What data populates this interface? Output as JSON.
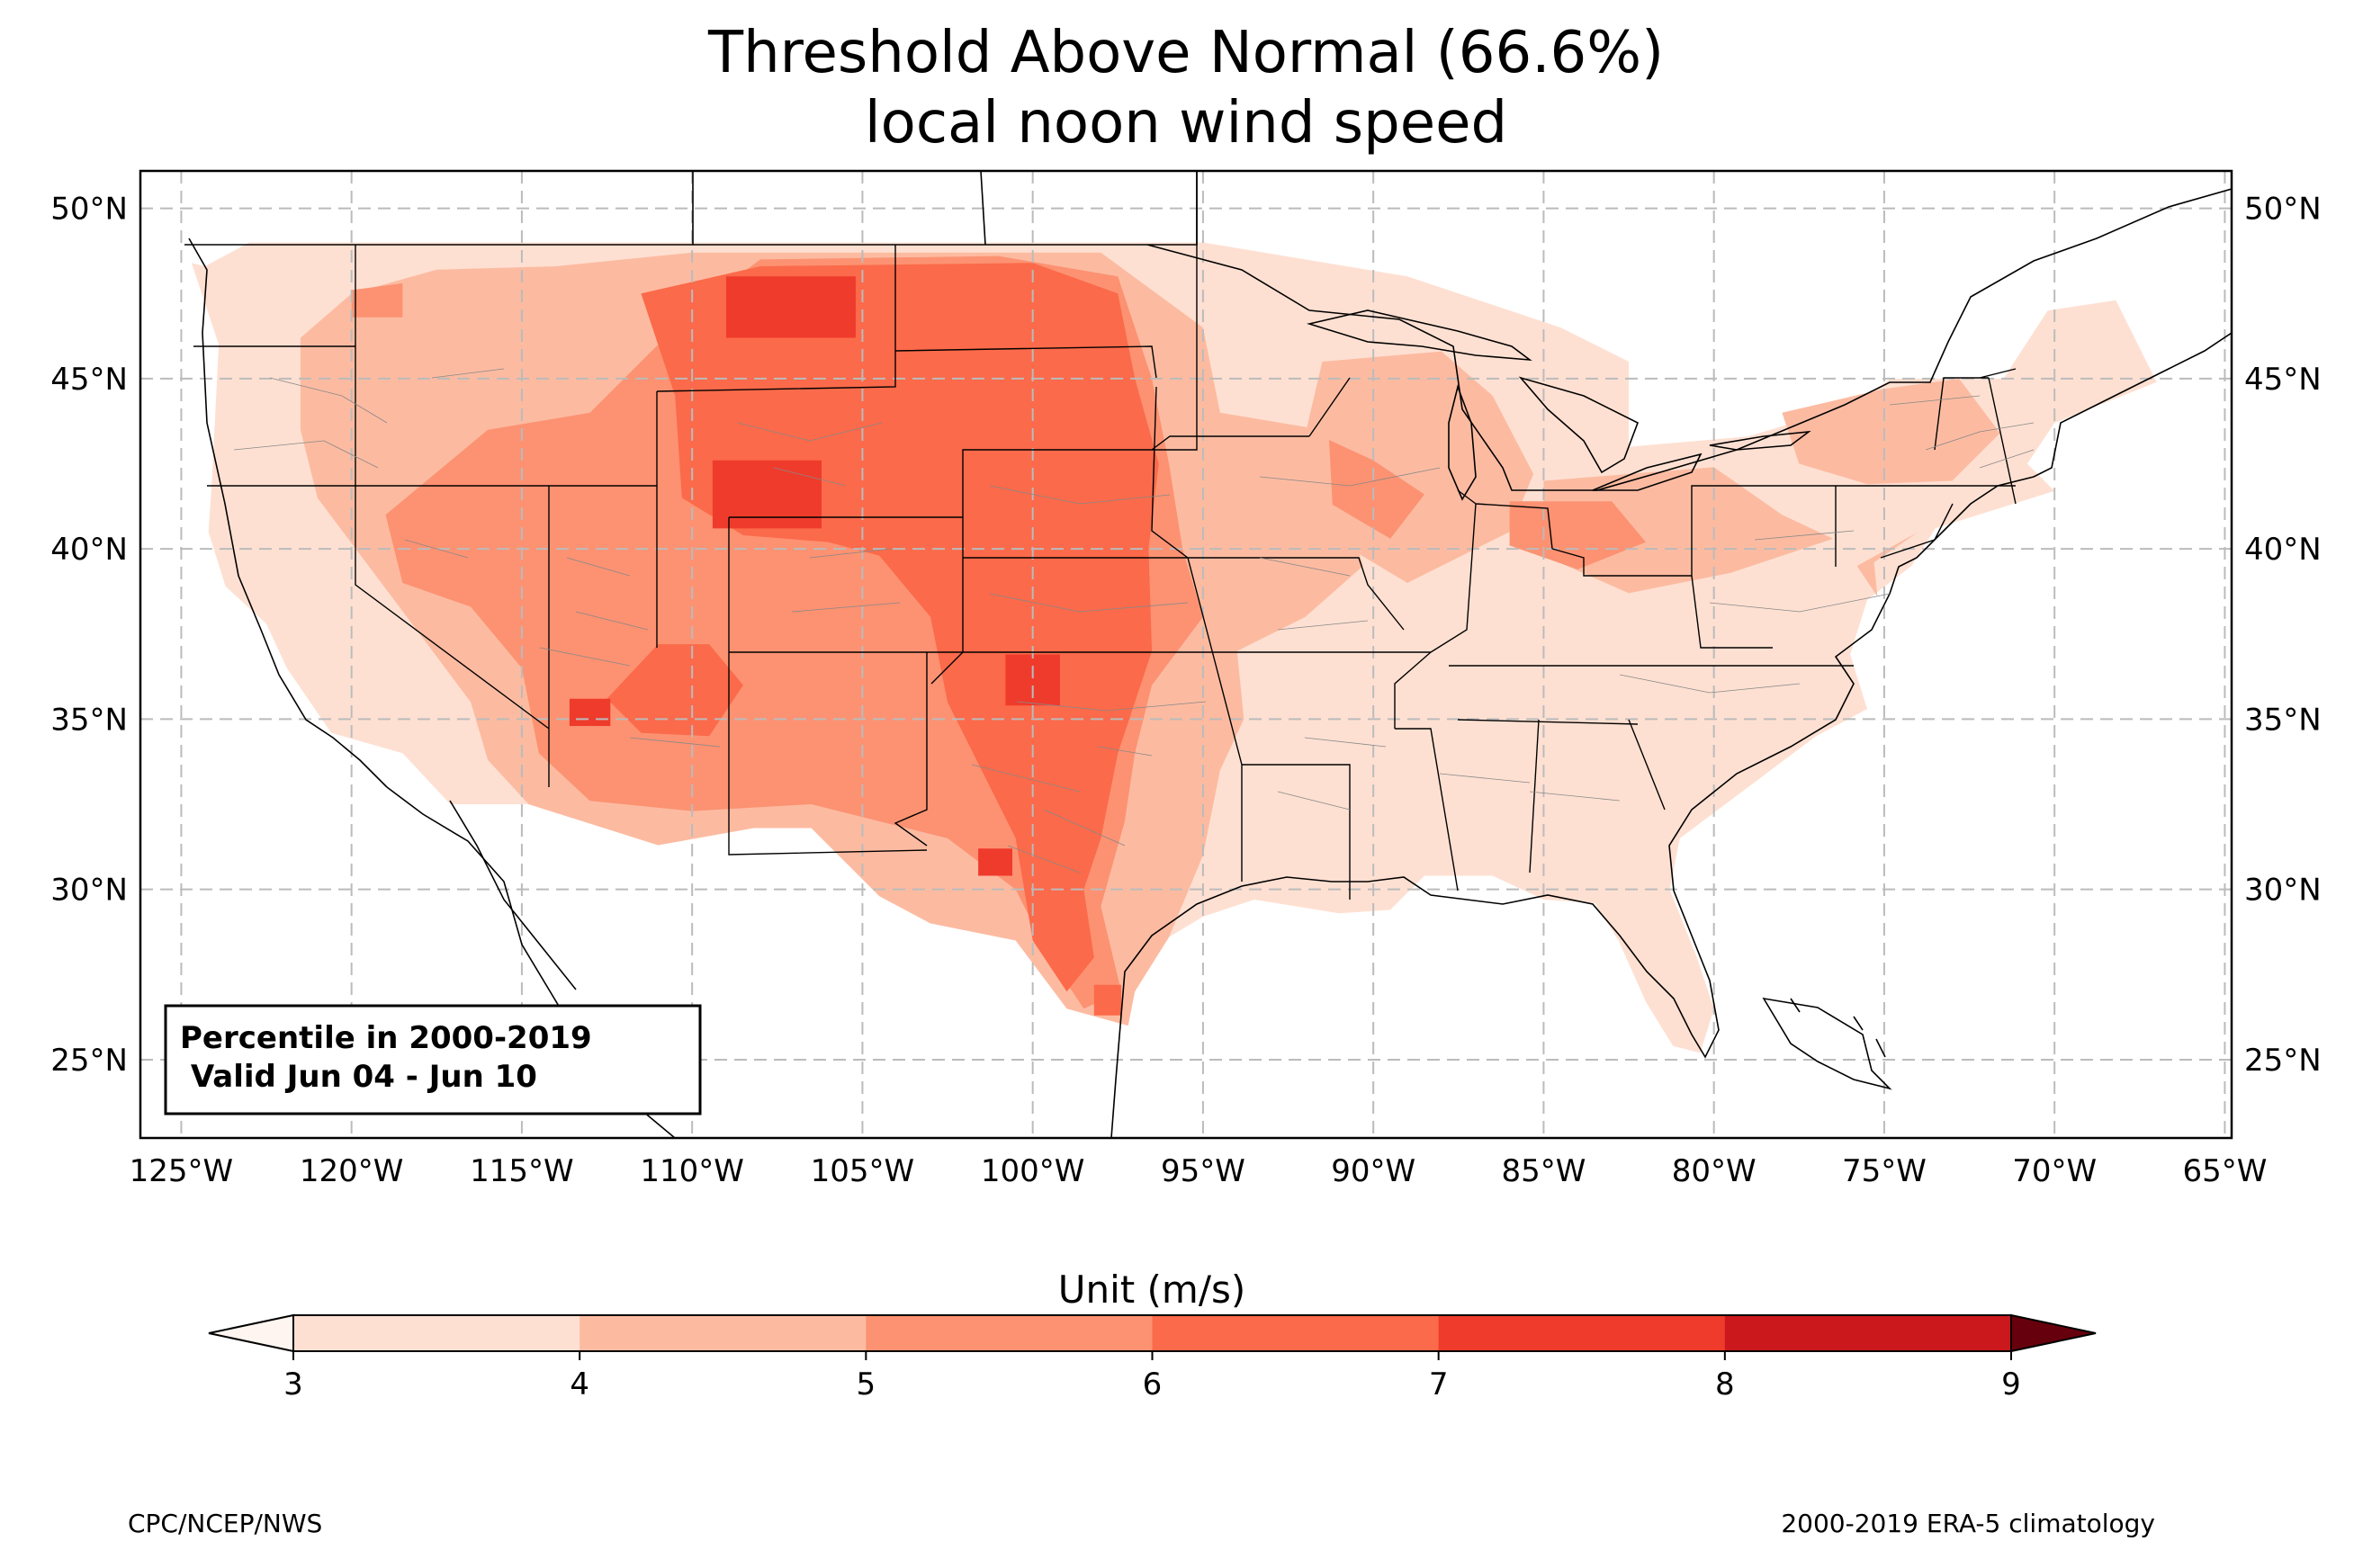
{
  "title_line1": "Threshold Above Normal (66.6%)",
  "title_line2": "local noon wind speed",
  "map": {
    "lon_range": [
      -126.2,
      -64.8
    ],
    "lat_range": [
      22.7,
      51.1
    ],
    "lon_ticks": [
      {
        "v": -125,
        "label": "125°W"
      },
      {
        "v": -120,
        "label": "120°W"
      },
      {
        "v": -115,
        "label": "115°W"
      },
      {
        "v": -110,
        "label": "110°W"
      },
      {
        "v": -105,
        "label": "105°W"
      },
      {
        "v": -100,
        "label": "100°W"
      },
      {
        "v": -95,
        "label": "95°W"
      },
      {
        "v": -90,
        "label": "90°W"
      },
      {
        "v": -85,
        "label": "85°W"
      },
      {
        "v": -80,
        "label": "80°W"
      },
      {
        "v": -75,
        "label": "75°W"
      },
      {
        "v": -70,
        "label": "70°W"
      },
      {
        "v": -65,
        "label": "65°W"
      }
    ],
    "lat_ticks": [
      {
        "v": 25,
        "label": "25°N"
      },
      {
        "v": 30,
        "label": "30°N"
      },
      {
        "v": 35,
        "label": "35°N"
      },
      {
        "v": 40,
        "label": "40°N"
      },
      {
        "v": 45,
        "label": "45°N"
      },
      {
        "v": 50,
        "label": "50°N"
      }
    ],
    "gridlines": true,
    "info_box": {
      "line1": "Percentile in 2000-2019",
      "line2": " Valid Jun 04 - Jun 10"
    },
    "regions": [
      {
        "level": 1,
        "lonlat": [
          [
            -124.3,
            48.3
          ],
          [
            -123,
            49
          ],
          [
            -95,
            49
          ],
          [
            -89,
            48
          ],
          [
            -84.5,
            46.5
          ],
          [
            -82.5,
            45.5
          ],
          [
            -82.5,
            43
          ],
          [
            -79,
            43.3
          ],
          [
            -76,
            44.2
          ],
          [
            -74.8,
            45
          ],
          [
            -71.5,
            45
          ],
          [
            -70.2,
            47
          ],
          [
            -68.2,
            47.3
          ],
          [
            -67,
            44.9
          ],
          [
            -70,
            43.7
          ],
          [
            -70.8,
            42.5
          ],
          [
            -70,
            41.7
          ],
          [
            -73.5,
            40.6
          ],
          [
            -74.2,
            39.5
          ],
          [
            -75.5,
            38.5
          ],
          [
            -76,
            36.9
          ],
          [
            -75.5,
            35.3
          ],
          [
            -77,
            34.5
          ],
          [
            -79,
            33
          ],
          [
            -81,
            31.5
          ],
          [
            -81.3,
            30
          ],
          [
            -80.5,
            28
          ],
          [
            -80,
            26.5
          ],
          [
            -80.4,
            25.2
          ],
          [
            -81.2,
            25.4
          ],
          [
            -82,
            26.7
          ],
          [
            -82.8,
            28.5
          ],
          [
            -83.5,
            29.6
          ],
          [
            -85,
            29.7
          ],
          [
            -86.5,
            30.4
          ],
          [
            -88.5,
            30.4
          ],
          [
            -89.5,
            29.4
          ],
          [
            -91,
            29.3
          ],
          [
            -93.5,
            29.7
          ],
          [
            -95,
            29.2
          ],
          [
            -96.5,
            28.3
          ],
          [
            -97.3,
            27.2
          ],
          [
            -97.2,
            26
          ],
          [
            -99,
            26.5
          ],
          [
            -100.5,
            28.5
          ],
          [
            -101.5,
            29.8
          ],
          [
            -103,
            29
          ],
          [
            -104.5,
            29.8
          ],
          [
            -106.5,
            31.8
          ],
          [
            -108.2,
            31.8
          ],
          [
            -111,
            31.3
          ],
          [
            -114.8,
            32.5
          ],
          [
            -117.1,
            32.5
          ],
          [
            -118.5,
            34
          ],
          [
            -120.6,
            34.6
          ],
          [
            -121.9,
            36.5
          ],
          [
            -122.5,
            37.8
          ],
          [
            -123.7,
            38.9
          ],
          [
            -124.2,
            40.5
          ],
          [
            -124.1,
            42
          ],
          [
            -124,
            44
          ],
          [
            -123.9,
            46
          ],
          [
            -124.7,
            48.4
          ]
        ]
      },
      {
        "level": 2,
        "lonlat": [
          [
            -121.5,
            46.2
          ],
          [
            -120,
            47.5
          ],
          [
            -117.5,
            48.2
          ],
          [
            -114,
            48.3
          ],
          [
            -110,
            48.7
          ],
          [
            -104,
            48.7
          ],
          [
            -98,
            48.7
          ],
          [
            -95,
            46.5
          ],
          [
            -94.5,
            44
          ],
          [
            -91.5,
            43.5
          ],
          [
            -91,
            41.8
          ],
          [
            -90.3,
            39.5
          ],
          [
            -92,
            38
          ],
          [
            -94,
            37
          ],
          [
            -93.8,
            35
          ],
          [
            -94.5,
            33.5
          ],
          [
            -95,
            31
          ],
          [
            -96,
            28.6
          ],
          [
            -97,
            27
          ],
          [
            -97.2,
            26
          ],
          [
            -99,
            26.5
          ],
          [
            -100.5,
            28.5
          ],
          [
            -103,
            29
          ],
          [
            -104.5,
            29.8
          ],
          [
            -106.5,
            31.8
          ],
          [
            -108.2,
            31.8
          ],
          [
            -111,
            31.3
          ],
          [
            -114.8,
            32.5
          ],
          [
            -116,
            33.8
          ],
          [
            -116.5,
            35.5
          ],
          [
            -118,
            37.5
          ],
          [
            -119.5,
            39.5
          ],
          [
            -121,
            41.5
          ],
          [
            -121.5,
            43.5
          ]
        ]
      },
      {
        "level": 2,
        "lonlat": [
          [
            -91.5,
            45.5
          ],
          [
            -88,
            45.8
          ],
          [
            -86.5,
            44.5
          ],
          [
            -85.3,
            42.2
          ],
          [
            -86,
            40.5
          ],
          [
            -89,
            39
          ],
          [
            -91,
            40.2
          ],
          [
            -92.2,
            42.5
          ]
        ]
      },
      {
        "level": 2,
        "lonlat": [
          [
            -85,
            42
          ],
          [
            -80,
            42.4
          ],
          [
            -78,
            41
          ],
          [
            -76.5,
            40.3
          ],
          [
            -79.5,
            39.3
          ],
          [
            -82.5,
            38.7
          ],
          [
            -85,
            39.8
          ]
        ]
      },
      {
        "level": 2,
        "lonlat": [
          [
            -78,
            44
          ],
          [
            -75,
            44.7
          ],
          [
            -72.8,
            45
          ],
          [
            -71.6,
            43.4
          ],
          [
            -73,
            42
          ],
          [
            -75.5,
            41.9
          ],
          [
            -77.5,
            42.5
          ]
        ]
      },
      {
        "level": 2,
        "lonlat": [
          [
            -74,
            40.5
          ],
          [
            -75.3,
            39.6
          ],
          [
            -75.2,
            38.6
          ],
          [
            -75.8,
            39.5
          ]
        ]
      },
      {
        "level": 3,
        "lonlat": [
          [
            -119,
            41
          ],
          [
            -116,
            43.5
          ],
          [
            -113,
            44
          ],
          [
            -110,
            47
          ],
          [
            -108,
            48.5
          ],
          [
            -101,
            48.6
          ],
          [
            -97.5,
            48
          ],
          [
            -96.5,
            45
          ],
          [
            -96,
            42.5
          ],
          [
            -95.6,
            40
          ],
          [
            -95,
            38
          ],
          [
            -96.5,
            36
          ],
          [
            -97,
            34
          ],
          [
            -97.3,
            32
          ],
          [
            -98,
            29.5
          ],
          [
            -97.4,
            27
          ],
          [
            -98.5,
            26.5
          ],
          [
            -99.5,
            28
          ],
          [
            -100.5,
            30
          ],
          [
            -102.5,
            31.5
          ],
          [
            -104.5,
            32
          ],
          [
            -106.5,
            32.5
          ],
          [
            -110,
            32.3
          ],
          [
            -113,
            32.6
          ],
          [
            -114.5,
            34
          ],
          [
            -115,
            36.5
          ],
          [
            -116.5,
            38.3
          ],
          [
            -118.5,
            39
          ]
        ]
      },
      {
        "level": 3,
        "lonlat": [
          [
            -91.3,
            43.2
          ],
          [
            -90,
            42.6
          ],
          [
            -88.5,
            41.6
          ],
          [
            -89.5,
            40.3
          ],
          [
            -91.2,
            41.3
          ]
        ]
      },
      {
        "level": 3,
        "lonlat": [
          [
            -86,
            41.4
          ],
          [
            -83,
            41.4
          ],
          [
            -82,
            40.2
          ],
          [
            -84,
            39.4
          ],
          [
            -86,
            40.1
          ]
        ]
      },
      {
        "level": 3,
        "lonlat": [
          [
            -120,
            47.6
          ],
          [
            -118.5,
            47.8
          ],
          [
            -118.5,
            46.8
          ],
          [
            -120,
            46.8
          ]
        ]
      },
      {
        "level": 4,
        "lonlat": [
          [
            -111.5,
            47.5
          ],
          [
            -108,
            48.3
          ],
          [
            -100,
            48.4
          ],
          [
            -97.5,
            47.5
          ],
          [
            -97,
            45
          ],
          [
            -96.3,
            42.5
          ],
          [
            -96.6,
            40
          ],
          [
            -96.5,
            37
          ],
          [
            -97.5,
            34
          ],
          [
            -98,
            31.5
          ],
          [
            -98.5,
            30
          ],
          [
            -98.2,
            28
          ],
          [
            -99,
            27
          ],
          [
            -100,
            28.5
          ],
          [
            -100.5,
            31.5
          ],
          [
            -101.5,
            33.5
          ],
          [
            -102.5,
            35.5
          ],
          [
            -103,
            38
          ],
          [
            -104.5,
            39.8
          ],
          [
            -106,
            40.2
          ],
          [
            -108.5,
            40.4
          ],
          [
            -110.3,
            41.5
          ],
          [
            -110.5,
            44.5
          ]
        ]
      },
      {
        "level": 4,
        "lonlat": [
          [
            -111,
            37.2
          ],
          [
            -109.5,
            37.2
          ],
          [
            -108.5,
            36
          ],
          [
            -109.5,
            34.5
          ],
          [
            -111.5,
            34.6
          ],
          [
            -112.5,
            35.6
          ]
        ]
      },
      {
        "level": 4,
        "lonlat": [
          [
            -98.2,
            27.2
          ],
          [
            -97.4,
            27.2
          ],
          [
            -97.4,
            26.3
          ],
          [
            -98.2,
            26.3
          ]
        ]
      },
      {
        "level": 5,
        "lonlat": [
          [
            -109,
            48
          ],
          [
            -105.2,
            48
          ],
          [
            -105.2,
            46.2
          ],
          [
            -109,
            46.2
          ]
        ]
      },
      {
        "level": 5,
        "lonlat": [
          [
            -109.4,
            42.6
          ],
          [
            -106.2,
            42.6
          ],
          [
            -106.2,
            40.6
          ],
          [
            -109.4,
            40.6
          ]
        ]
      },
      {
        "level": 5,
        "lonlat": [
          [
            -100.8,
            36.9
          ],
          [
            -99.2,
            36.9
          ],
          [
            -99.2,
            35.4
          ],
          [
            -100.8,
            35.4
          ]
        ]
      },
      {
        "level": 5,
        "lonlat": [
          [
            -101.6,
            31.2
          ],
          [
            -100.6,
            31.2
          ],
          [
            -100.6,
            30.4
          ],
          [
            -101.6,
            30.4
          ]
        ]
      },
      {
        "level": 5,
        "lonlat": [
          [
            -113.6,
            35.6
          ],
          [
            -112.4,
            35.6
          ],
          [
            -112.4,
            34.8
          ],
          [
            -113.6,
            34.8
          ]
        ]
      }
    ]
  },
  "colorbar": {
    "label": "Unit (m/s)",
    "ticks": [
      "3",
      "4",
      "5",
      "6",
      "7",
      "8",
      "9"
    ],
    "under_color": "#fff5f0",
    "over_color": "#67000d",
    "colors": [
      "#fee0d2",
      "#fcbba1",
      "#fc9272",
      "#fb6a4a",
      "#ef3b2c",
      "#cb181d",
      "#a50f15"
    ],
    "level_colors": [
      "#fff5f0",
      "#fee0d2",
      "#fcbba1",
      "#fc9272",
      "#fb6a4a",
      "#ef3b2c"
    ]
  },
  "footer_left": "CPC/NCEP/NWS",
  "footer_right": "2000-2019 ERA-5 climatology"
}
